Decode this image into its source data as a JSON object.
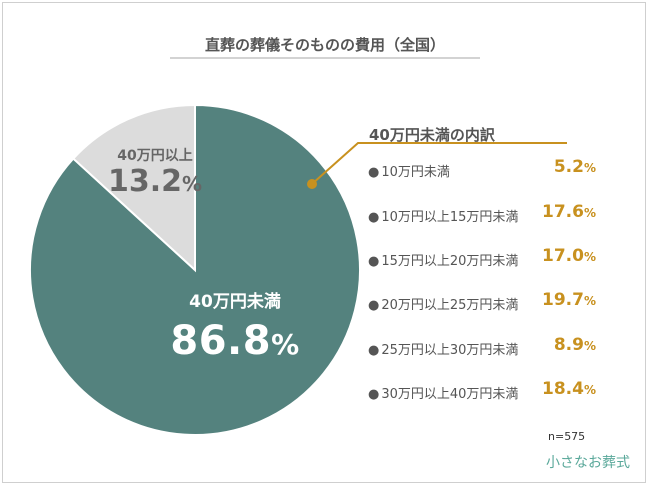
{
  "chart_data": {
    "type": "pie",
    "title": "直葬の葬儀そのものの費用（全国）",
    "slices": [
      {
        "label": "40万円未満",
        "value": 86.8,
        "color": "#54827e",
        "text_color": "#ffffff"
      },
      {
        "label": "40万円以上",
        "value": 13.2,
        "color": "#dcdcdc",
        "text_color": "#666666"
      }
    ],
    "breakdown": {
      "title": "40万円未満の内訳",
      "color": "#c8911f",
      "items": [
        {
          "label": "10万円未満",
          "value": 5.2
        },
        {
          "label": "10万円以上15万円未満",
          "value": 17.6
        },
        {
          "label": "15万円以上20万円未満",
          "value": 17.0
        },
        {
          "label": "20万円以上25万円未満",
          "value": 19.7
        },
        {
          "label": "25万円以上30万円未満",
          "value": 8.9
        },
        {
          "label": "30万円以上40万円未満",
          "value": 18.4
        }
      ]
    },
    "sample_size": "n=575",
    "percent_sign": "%"
  },
  "logo_text": "小さなお葬式",
  "colors": {
    "accent": "#c8911f",
    "teal": "#54827e",
    "grey": "#dcdcdc"
  }
}
